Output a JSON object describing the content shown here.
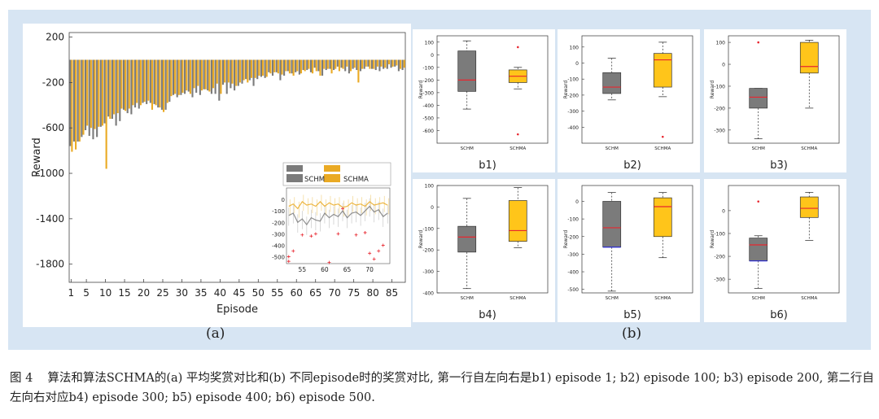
{
  "colors": {
    "panel": "#d7e5f3",
    "schm": "#7b7b7b",
    "schma": "#eaaa24",
    "box_schma": "#ffc51a",
    "median": "#e8262f",
    "outlier": "#e8262f",
    "blue_edge": "#2a2ad6"
  },
  "chart_data": [
    {
      "id": "a",
      "type": "bar",
      "xlabel": "Episode",
      "ylabel": "Reward",
      "xlim": [
        0.5,
        88.5
      ],
      "ylim": [
        -1960,
        240
      ],
      "yticks": [
        200,
        -200,
        -600,
        -1000,
        -1400,
        -1800
      ],
      "xticks": [
        1,
        5,
        10,
        15,
        20,
        25,
        30,
        35,
        40,
        45,
        50,
        55,
        60,
        65,
        70,
        75,
        80,
        85
      ],
      "series": [
        {
          "name": "SCHM",
          "values": [
            -760,
            -720,
            -720,
            -680,
            -620,
            -670,
            -700,
            -680,
            -590,
            -560,
            -500,
            -520,
            -580,
            -540,
            -440,
            -470,
            -480,
            -420,
            -430,
            -380,
            -390,
            -380,
            -390,
            -420,
            -440,
            -440,
            -370,
            -310,
            -330,
            -310,
            -300,
            -280,
            -330,
            -290,
            -310,
            -260,
            -270,
            -300,
            -300,
            -360,
            -220,
            -300,
            -250,
            -270,
            -230,
            -210,
            -170,
            -180,
            -230,
            -170,
            -150,
            -160,
            -110,
            -140,
            -110,
            -180,
            -140,
            -100,
            -120,
            -110,
            -130,
            -90,
            -90,
            -110,
            -70,
            -100,
            -140,
            -90,
            -80,
            -90,
            -60,
            -70,
            -100,
            -120,
            -80,
            -90,
            -100,
            -80,
            -60,
            -80,
            -90,
            -100,
            -80,
            -80,
            -70,
            -60,
            -100,
            -90
          ]
        },
        {
          "name": "SCHMA",
          "values": [
            -810,
            -790,
            -720,
            -660,
            -580,
            -600,
            -610,
            -590,
            -580,
            -960,
            -520,
            -480,
            -470,
            -430,
            -450,
            -430,
            -400,
            -380,
            -400,
            -370,
            -360,
            -440,
            -400,
            -420,
            -460,
            -380,
            -320,
            -300,
            -310,
            -290,
            -270,
            -300,
            -250,
            -230,
            -270,
            -260,
            -280,
            -250,
            -210,
            -300,
            -200,
            -200,
            -210,
            -230,
            -200,
            -180,
            -200,
            -160,
            -160,
            -140,
            -140,
            -150,
            -120,
            -110,
            -120,
            -130,
            -100,
            -120,
            -140,
            -100,
            -120,
            -100,
            -80,
            -120,
            -100,
            -140,
            -80,
            -80,
            -120,
            -80,
            -100,
            -80,
            -60,
            -100,
            -70,
            -200,
            -80,
            -60,
            -80,
            -80,
            -60,
            -60,
            -70,
            -40,
            -60,
            -50,
            -80,
            -70
          ]
        }
      ],
      "legend": {
        "entries": [
          "SCHM",
          "SCHMA"
        ],
        "position": "right"
      },
      "inset": {
        "type": "line",
        "xlim": [
          51.5,
          74.5
        ],
        "ylim": [
          -560,
          100
        ],
        "xticks": [
          55,
          60,
          65,
          70
        ],
        "yticks": [
          0,
          -100,
          -200,
          -300,
          -400,
          -500
        ],
        "x": [
          52,
          53,
          54,
          55,
          56,
          57,
          58,
          59,
          60,
          61,
          62,
          63,
          64,
          65,
          66,
          67,
          68,
          69,
          70,
          71,
          72,
          73,
          74
        ],
        "series": [
          {
            "name": "SCHM",
            "values": [
              -140,
              -120,
              -200,
              -170,
              -220,
              -160,
              -180,
              -190,
              -120,
              -160,
              -130,
              -150,
              -100,
              -160,
              -120,
              -110,
              -140,
              -100,
              -60,
              -110,
              -90,
              -150,
              -120
            ]
          },
          {
            "name": "SCHMA",
            "values": [
              -60,
              -40,
              -80,
              -20,
              -50,
              -40,
              -60,
              -20,
              -60,
              -30,
              -50,
              -40,
              -70,
              -60,
              -30,
              -50,
              -40,
              -60,
              -20,
              -50,
              -40,
              -30,
              -50
            ]
          }
        ],
        "outliers_x": [
          52,
          53,
          52,
          55,
          57,
          58,
          61,
          63,
          64,
          67,
          69,
          70,
          71,
          72,
          73
        ],
        "outliers_y": [
          -500,
          -450,
          -540,
          -310,
          -320,
          -300,
          -550,
          -300,
          -80,
          -310,
          -290,
          -470,
          -520,
          -450,
          -400
        ]
      }
    },
    {
      "id": "b1",
      "type": "box",
      "title": "b1)",
      "ylabel": "Reward",
      "ylim": [
        -700,
        150
      ],
      "yticks": [
        -600,
        -500,
        -400,
        -300,
        -200,
        -100,
        0,
        100
      ],
      "categories": [
        "SCHM",
        "SCHMA"
      ],
      "boxes": [
        {
          "q1": -290,
          "q3": 30,
          "median": -200,
          "whisker_low": -430,
          "whisker_high": 110,
          "outliers": []
        },
        {
          "q1": -220,
          "q3": -120,
          "median": -170,
          "whisker_low": -270,
          "whisker_high": -100,
          "outliers": [
            60,
            -630
          ]
        }
      ]
    },
    {
      "id": "b2",
      "type": "box",
      "title": "b2)",
      "ylabel": "Reward",
      "ylim": [
        -500,
        170
      ],
      "yticks": [
        -400,
        -300,
        -200,
        -100,
        0,
        100
      ],
      "categories": [
        "SCHM",
        "SCHMA"
      ],
      "boxes": [
        {
          "q1": -190,
          "q3": -60,
          "median": -150,
          "whisker_low": -230,
          "whisker_high": 30,
          "outliers": []
        },
        {
          "q1": -150,
          "q3": 60,
          "median": 20,
          "whisker_low": -210,
          "whisker_high": 130,
          "outliers": [
            -460
          ]
        }
      ]
    },
    {
      "id": "b3",
      "type": "box",
      "title": "b3)",
      "ylabel": "Reward",
      "ylim": [
        -360,
        130
      ],
      "yticks": [
        -300,
        -200,
        -100,
        0,
        100
      ],
      "categories": [
        "SCHM",
        "SCHMA"
      ],
      "boxes": [
        {
          "q1": -200,
          "q3": -110,
          "median": -150,
          "whisker_low": -340,
          "whisker_high": -110,
          "outliers": [
            100
          ]
        },
        {
          "q1": -40,
          "q3": 100,
          "median": -10,
          "whisker_low": -200,
          "whisker_high": 110,
          "outliers": []
        }
      ]
    },
    {
      "id": "b4",
      "type": "box",
      "title": "b4)",
      "ylabel": "Reward",
      "ylim": [
        -400,
        100
      ],
      "yticks": [
        -400,
        -300,
        -200,
        -100,
        0,
        100
      ],
      "categories": [
        "SCHM",
        "SCHMA"
      ],
      "boxes": [
        {
          "q1": -210,
          "q3": -90,
          "median": -140,
          "whisker_low": -380,
          "whisker_high": 40,
          "outliers": []
        },
        {
          "q1": -160,
          "q3": 30,
          "median": -110,
          "whisker_low": -190,
          "whisker_high": 90,
          "outliers": []
        }
      ]
    },
    {
      "id": "b5",
      "type": "box",
      "title": "b5)",
      "ylabel": "Reward",
      "ylim": [
        -520,
        90
      ],
      "yticks": [
        -500,
        -400,
        -300,
        -200,
        -100,
        0
      ],
      "categories": [
        "SCHM",
        "SCHMA"
      ],
      "boxes": [
        {
          "q1": -260,
          "q3": 0,
          "median": -150,
          "whisker_low": -510,
          "whisker_high": 50,
          "outliers": [],
          "blue_bottom": true
        },
        {
          "q1": -200,
          "q3": 20,
          "median": -30,
          "whisker_low": -320,
          "whisker_high": 50,
          "outliers": []
        }
      ]
    },
    {
      "id": "b6",
      "type": "box",
      "title": "b6)",
      "ylabel": "Reward",
      "ylim": [
        -360,
        110
      ],
      "yticks": [
        -300,
        -200,
        -100,
        0
      ],
      "categories": [
        "SCHM",
        "SCHMA"
      ],
      "boxes": [
        {
          "q1": -220,
          "q3": -120,
          "median": -150,
          "whisker_low": -340,
          "whisker_high": -110,
          "outliers": [
            40
          ],
          "blue_bottom": true
        },
        {
          "q1": -30,
          "q3": 60,
          "median": 10,
          "whisker_low": -130,
          "whisker_high": 80,
          "outliers": []
        }
      ]
    }
  ],
  "labels": {
    "a": "(a)",
    "b": "(b)"
  },
  "caption": {
    "fig_no": "图 4",
    "text": "算法和算法SCHMA的(a) 平均奖赏对比和(b) 不同episode时的奖赏对比, 第一行自左向右是b1) episode 1; b2) episode 100; b3) episode 200, 第二行自左向右对应b4) episode 300; b5) episode 400; b6) episode 500."
  }
}
